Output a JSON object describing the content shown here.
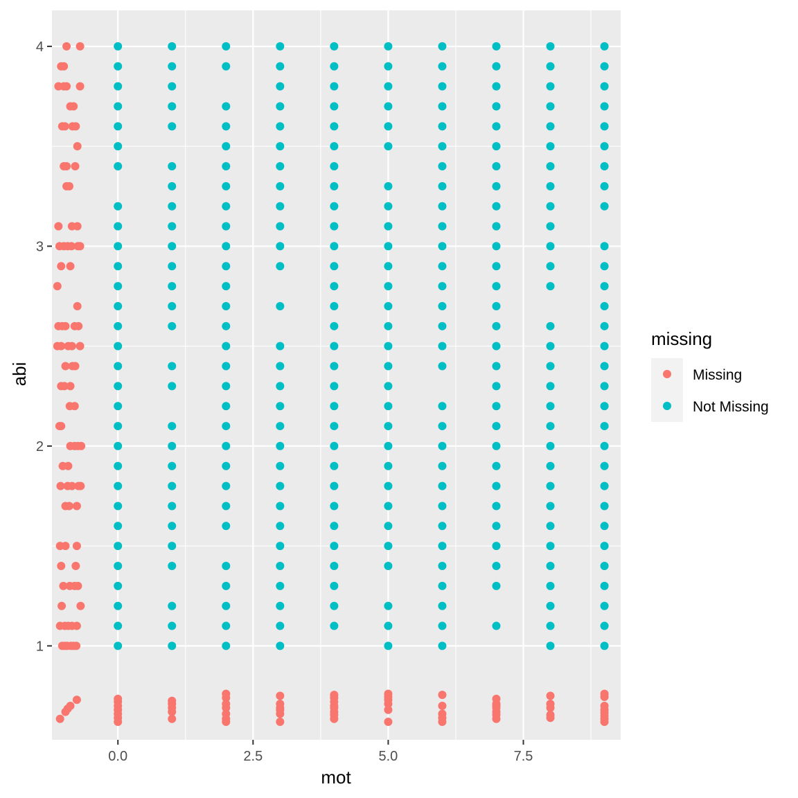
{
  "chart_data": {
    "type": "scatter",
    "xlabel": "mot",
    "ylabel": "abi",
    "xlim": [
      -1.22,
      9.3
    ],
    "ylim": [
      0.53,
      4.18
    ],
    "x_ticks": [
      0.0,
      2.5,
      5.0,
      7.5
    ],
    "x_tick_labels": [
      "0.0",
      "2.5",
      "5.0",
      "7.5"
    ],
    "y_ticks": [
      1,
      2,
      3,
      4
    ],
    "y_tick_labels": [
      "1",
      "2",
      "3",
      "4"
    ],
    "grid": true,
    "legend": {
      "title": "missing",
      "position": "right",
      "entries": [
        {
          "label": "Missing",
          "color": "#F8766D"
        },
        {
          "label": "Not Missing",
          "color": "#00BFC4"
        }
      ]
    },
    "series": [
      {
        "name": "Missing",
        "color": "#F8766D",
        "points": [
          [
            -0.95,
            4.0
          ],
          [
            -0.7,
            4.0
          ],
          [
            -1.05,
            3.9
          ],
          [
            -1.0,
            3.9
          ],
          [
            -1.1,
            3.8
          ],
          [
            -1.0,
            3.8
          ],
          [
            -0.95,
            3.8
          ],
          [
            -0.7,
            3.8
          ],
          [
            -0.88,
            3.7
          ],
          [
            -0.82,
            3.7
          ],
          [
            -1.03,
            3.6
          ],
          [
            -0.98,
            3.6
          ],
          [
            -0.84,
            3.6
          ],
          [
            -0.78,
            3.6
          ],
          [
            -0.75,
            3.5
          ],
          [
            -1.0,
            3.4
          ],
          [
            -0.95,
            3.4
          ],
          [
            -0.79,
            3.4
          ],
          [
            -0.95,
            3.3
          ],
          [
            -0.9,
            3.3
          ],
          [
            -1.1,
            3.1
          ],
          [
            -0.85,
            3.1
          ],
          [
            -0.75,
            3.1
          ],
          [
            -1.08,
            3.0
          ],
          [
            -1.0,
            3.0
          ],
          [
            -0.93,
            3.0
          ],
          [
            -0.86,
            3.0
          ],
          [
            -0.74,
            3.0
          ],
          [
            -0.7,
            3.0
          ],
          [
            -1.05,
            2.9
          ],
          [
            -0.88,
            2.9
          ],
          [
            -1.12,
            2.8
          ],
          [
            -0.75,
            2.7
          ],
          [
            -1.1,
            2.6
          ],
          [
            -1.03,
            2.6
          ],
          [
            -0.97,
            2.6
          ],
          [
            -0.8,
            2.6
          ],
          [
            -0.73,
            2.6
          ],
          [
            -1.12,
            2.5
          ],
          [
            -1.05,
            2.5
          ],
          [
            -0.92,
            2.5
          ],
          [
            -0.85,
            2.5
          ],
          [
            -0.7,
            2.5
          ],
          [
            -0.97,
            2.4
          ],
          [
            -0.84,
            2.4
          ],
          [
            -0.79,
            2.4
          ],
          [
            -1.05,
            2.3
          ],
          [
            -0.99,
            2.3
          ],
          [
            -0.88,
            2.3
          ],
          [
            -0.89,
            2.2
          ],
          [
            -0.8,
            2.2
          ],
          [
            -1.08,
            2.1
          ],
          [
            -1.05,
            2.1
          ],
          [
            -0.88,
            2.0
          ],
          [
            -0.8,
            2.0
          ],
          [
            -0.74,
            2.0
          ],
          [
            -0.68,
            2.0
          ],
          [
            -1.02,
            1.9
          ],
          [
            -0.92,
            1.9
          ],
          [
            -1.06,
            1.8
          ],
          [
            -0.93,
            1.8
          ],
          [
            -0.85,
            1.8
          ],
          [
            -0.73,
            1.8
          ],
          [
            -0.69,
            1.8
          ],
          [
            -0.97,
            1.7
          ],
          [
            -0.9,
            1.7
          ],
          [
            -0.76,
            1.7
          ],
          [
            -1.07,
            1.5
          ],
          [
            -0.97,
            1.5
          ],
          [
            -0.76,
            1.5
          ],
          [
            -1.05,
            1.4
          ],
          [
            -0.78,
            1.4
          ],
          [
            -1.01,
            1.3
          ],
          [
            -0.89,
            1.3
          ],
          [
            -0.8,
            1.3
          ],
          [
            -0.74,
            1.3
          ],
          [
            -1.04,
            1.2
          ],
          [
            -0.69,
            1.2
          ],
          [
            -1.07,
            1.1
          ],
          [
            -0.98,
            1.1
          ],
          [
            -0.92,
            1.1
          ],
          [
            -0.85,
            1.1
          ],
          [
            -0.76,
            1.1
          ],
          [
            -1.03,
            1.0
          ],
          [
            -0.98,
            1.0
          ],
          [
            -0.94,
            1.0
          ],
          [
            -0.87,
            1.0
          ],
          [
            -0.82,
            1.0
          ],
          [
            -0.77,
            1.0
          ],
          [
            -1.07,
            0.635
          ],
          [
            -0.97,
            0.67
          ],
          [
            -0.93,
            0.685
          ],
          [
            -0.88,
            0.7
          ],
          [
            -0.76,
            0.73
          ],
          [
            0.0,
            0.735
          ],
          [
            0.0,
            0.72
          ],
          [
            0.0,
            0.7
          ],
          [
            0.0,
            0.68
          ],
          [
            0.0,
            0.66
          ],
          [
            0.0,
            0.64
          ],
          [
            0.0,
            0.62
          ],
          [
            1.0,
            0.725
          ],
          [
            1.0,
            0.71
          ],
          [
            1.0,
            0.69
          ],
          [
            1.0,
            0.67
          ],
          [
            1.0,
            0.635
          ],
          [
            2.0,
            0.76
          ],
          [
            2.0,
            0.74
          ],
          [
            2.0,
            0.71
          ],
          [
            2.0,
            0.69
          ],
          [
            2.0,
            0.66
          ],
          [
            2.0,
            0.635
          ],
          [
            2.0,
            0.62
          ],
          [
            3.0,
            0.75
          ],
          [
            3.0,
            0.71
          ],
          [
            3.0,
            0.69
          ],
          [
            3.0,
            0.68
          ],
          [
            3.0,
            0.66
          ],
          [
            3.0,
            0.62
          ],
          [
            4.0,
            0.755
          ],
          [
            4.0,
            0.74
          ],
          [
            4.0,
            0.72
          ],
          [
            4.0,
            0.7
          ],
          [
            4.0,
            0.69
          ],
          [
            4.0,
            0.67
          ],
          [
            4.0,
            0.655
          ],
          [
            4.0,
            0.635
          ],
          [
            5.0,
            0.76
          ],
          [
            5.0,
            0.745
          ],
          [
            5.0,
            0.73
          ],
          [
            5.0,
            0.71
          ],
          [
            5.0,
            0.68
          ],
          [
            5.0,
            0.62
          ],
          [
            6.0,
            0.755
          ],
          [
            6.0,
            0.7
          ],
          [
            6.0,
            0.66
          ],
          [
            6.0,
            0.64
          ],
          [
            6.0,
            0.62
          ],
          [
            7.0,
            0.735
          ],
          [
            7.0,
            0.71
          ],
          [
            7.0,
            0.7
          ],
          [
            7.0,
            0.69
          ],
          [
            7.0,
            0.67
          ],
          [
            7.0,
            0.655
          ],
          [
            7.0,
            0.635
          ],
          [
            8.0,
            0.75
          ],
          [
            8.0,
            0.71
          ],
          [
            8.0,
            0.69
          ],
          [
            8.0,
            0.655
          ],
          [
            8.0,
            0.64
          ],
          [
            9.0,
            0.76
          ],
          [
            9.0,
            0.745
          ],
          [
            9.0,
            0.7
          ],
          [
            9.0,
            0.68
          ],
          [
            9.0,
            0.665
          ],
          [
            9.0,
            0.65
          ],
          [
            9.0,
            0.635
          ],
          [
            9.0,
            0.62
          ]
        ]
      },
      {
        "name": "Not Missing",
        "color": "#00BFC4",
        "columns": [
          {
            "x": 0,
            "y": [
              4.0,
              3.9,
              3.8,
              3.7,
              3.6,
              3.5,
              3.4,
              3.2,
              3.1,
              3.0,
              2.9,
              2.8,
              2.7,
              2.6,
              2.5,
              2.4,
              2.3,
              2.2,
              2.1,
              2.0,
              1.9,
              1.8,
              1.7,
              1.6,
              1.5,
              1.4,
              1.3,
              1.2,
              1.1,
              1.0
            ]
          },
          {
            "x": 1,
            "y": [
              4.0,
              3.9,
              3.8,
              3.7,
              3.6,
              3.4,
              3.3,
              3.2,
              3.1,
              3.0,
              2.9,
              2.8,
              2.7,
              2.6,
              2.4,
              2.3,
              2.1,
              2.0,
              1.9,
              1.8,
              1.7,
              1.6,
              1.5,
              1.4,
              1.2,
              1.1,
              1.0
            ]
          },
          {
            "x": 2,
            "y": [
              4.0,
              3.9,
              3.7,
              3.6,
              3.5,
              3.4,
              3.3,
              3.2,
              3.1,
              3.0,
              2.9,
              2.8,
              2.7,
              2.6,
              2.5,
              2.4,
              2.3,
              2.2,
              2.1,
              2.0,
              1.9,
              1.8,
              1.7,
              1.6,
              1.4,
              1.3,
              1.2,
              1.1,
              1.0
            ]
          },
          {
            "x": 3,
            "y": [
              4.0,
              3.9,
              3.8,
              3.7,
              3.6,
              3.5,
              3.4,
              3.3,
              3.2,
              3.1,
              3.0,
              2.9,
              2.7,
              2.5,
              2.4,
              2.3,
              2.2,
              2.1,
              2.0,
              1.9,
              1.8,
              1.7,
              1.6,
              1.5,
              1.4,
              1.3,
              1.2,
              1.1,
              1.0
            ]
          },
          {
            "x": 4,
            "y": [
              4.0,
              3.9,
              3.8,
              3.7,
              3.6,
              3.5,
              3.4,
              3.3,
              3.2,
              3.1,
              3.0,
              2.9,
              2.8,
              2.7,
              2.6,
              2.5,
              2.4,
              2.3,
              2.2,
              2.1,
              2.0,
              1.9,
              1.8,
              1.7,
              1.6,
              1.5,
              1.4,
              1.3,
              1.2,
              1.1
            ]
          },
          {
            "x": 5,
            "y": [
              4.0,
              3.9,
              3.8,
              3.7,
              3.6,
              3.5,
              3.3,
              3.2,
              3.1,
              3.0,
              2.9,
              2.8,
              2.7,
              2.6,
              2.5,
              2.4,
              2.3,
              2.2,
              2.1,
              2.0,
              1.9,
              1.8,
              1.7,
              1.6,
              1.5,
              1.4,
              1.2,
              1.1,
              1.0
            ]
          },
          {
            "x": 6,
            "y": [
              4.0,
              3.9,
              3.8,
              3.7,
              3.6,
              3.5,
              3.4,
              3.3,
              3.2,
              3.1,
              3.0,
              2.9,
              2.8,
              2.7,
              2.6,
              2.5,
              2.4,
              2.2,
              2.1,
              2.0,
              1.9,
              1.8,
              1.7,
              1.6,
              1.5,
              1.4,
              1.3,
              1.2,
              1.1,
              1.0
            ]
          },
          {
            "x": 7,
            "y": [
              4.0,
              3.9,
              3.8,
              3.7,
              3.6,
              3.5,
              3.4,
              3.3,
              3.2,
              3.1,
              3.0,
              2.9,
              2.8,
              2.7,
              2.6,
              2.5,
              2.4,
              2.3,
              2.2,
              2.1,
              2.0,
              1.9,
              1.8,
              1.7,
              1.6,
              1.5,
              1.4,
              1.3,
              1.1
            ]
          },
          {
            "x": 8,
            "y": [
              4.0,
              3.9,
              3.8,
              3.7,
              3.6,
              3.5,
              3.4,
              3.3,
              3.2,
              3.1,
              3.0,
              2.9,
              2.8,
              2.6,
              2.5,
              2.4,
              2.3,
              2.2,
              2.1,
              2.0,
              1.9,
              1.8,
              1.7,
              1.6,
              1.5,
              1.4,
              1.3,
              1.2,
              1.1,
              1.0
            ]
          },
          {
            "x": 9,
            "y": [
              4.0,
              3.9,
              3.8,
              3.7,
              3.6,
              3.5,
              3.4,
              3.3,
              3.2,
              3.0,
              2.9,
              2.8,
              2.7,
              2.6,
              2.5,
              2.4,
              2.3,
              2.2,
              2.1,
              2.0,
              1.9,
              1.8,
              1.7,
              1.6,
              1.5,
              1.4,
              1.3,
              1.2,
              1.1,
              1.0
            ]
          }
        ]
      }
    ]
  }
}
